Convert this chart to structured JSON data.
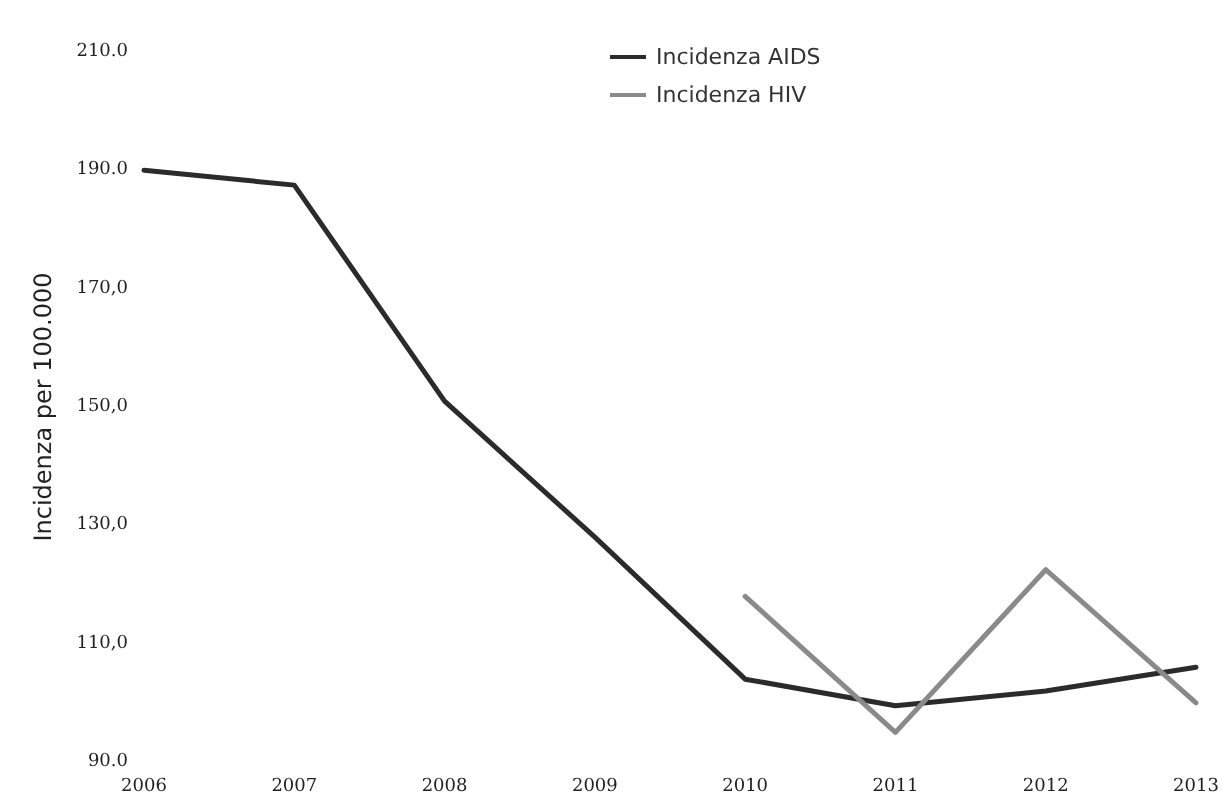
{
  "chart_data": {
    "type": "line",
    "ylabel": "Incidenza per 100.000",
    "categories": [
      "2006",
      "2007",
      "2008",
      "2009",
      "2010",
      "2011",
      "2012",
      "2013"
    ],
    "series": [
      {
        "name": "Incidenza AIDS",
        "color": "#2b2b2b",
        "values": [
          190,
          187.5,
          151,
          128,
          104,
          99.5,
          102,
          106
        ]
      },
      {
        "name": "Incidenza HIV",
        "color": "#8a8a8a",
        "values": [
          null,
          null,
          null,
          null,
          118,
          95,
          122.5,
          100
        ]
      }
    ],
    "ylim": [
      90,
      210
    ],
    "yticks": [
      {
        "value": 90,
        "label": "90.0"
      },
      {
        "value": 110,
        "label": "110,0"
      },
      {
        "value": 130,
        "label": "130,0"
      },
      {
        "value": 150,
        "label": "150,0"
      },
      {
        "value": 170,
        "label": "170,0"
      },
      {
        "value": 190,
        "label": "190.0"
      },
      {
        "value": 210,
        "label": "210.0"
      }
    ],
    "grid": false,
    "legend": "top",
    "marker": "none",
    "line_style": "solid"
  }
}
